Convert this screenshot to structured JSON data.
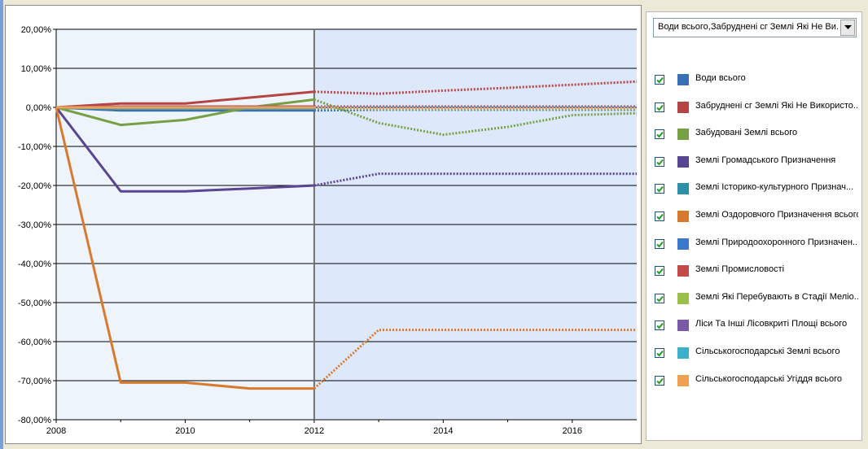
{
  "chart_data": {
    "type": "line",
    "xlim": [
      2008,
      2017
    ],
    "ylim": [
      -80,
      20
    ],
    "x_ticks": [
      2008,
      2010,
      2012,
      2014,
      2016
    ],
    "x_tick_labels": [
      "2008",
      "2010",
      "2012",
      "2014",
      "2016"
    ],
    "y_ticks": [
      20,
      10,
      0,
      -10,
      -20,
      -30,
      -40,
      -50,
      -60,
      -70,
      -80
    ],
    "y_tick_labels": [
      "20,00%",
      "10,00%",
      "0,00%",
      "-10,00%",
      "-20,00%",
      "-30,00%",
      "-40,00%",
      "-50,00%",
      "-60,00%",
      "-70,00%",
      "-80,00%"
    ],
    "forecast_start": 2012,
    "grid": true,
    "series": [
      {
        "name": "Води всього",
        "color": "#3a6eb5",
        "x": [
          2008,
          2009,
          2010,
          2011,
          2012,
          2013,
          2014,
          2015,
          2016,
          2017
        ],
        "y": [
          0,
          -0.8,
          -0.8,
          -0.8,
          -0.8,
          -0.6,
          -0.6,
          -0.6,
          -0.6,
          -0.6
        ]
      },
      {
        "name": "Забруднені сг Землі Які Не Використо...",
        "color": "#b54545",
        "x": [
          2008,
          2009,
          2010,
          2011,
          2012,
          2013,
          2014,
          2015,
          2016,
          2017
        ],
        "y": [
          0,
          1,
          1,
          2.5,
          4,
          3.5,
          4.3,
          5,
          5.8,
          6.6
        ]
      },
      {
        "name": "Забудовані Землі всього",
        "color": "#77a044",
        "x": [
          2008,
          2009,
          2010,
          2011,
          2012,
          2013,
          2014,
          2015,
          2016,
          2017
        ],
        "y": [
          0,
          -4.5,
          -3.2,
          0,
          2,
          -4,
          -7,
          -5,
          -2,
          -1.5
        ]
      },
      {
        "name": "Землі Громадського Призначення",
        "color": "#5a4590",
        "x": [
          2008,
          2009,
          2010,
          2011,
          2012,
          2013,
          2014,
          2015,
          2016,
          2017
        ],
        "y": [
          0,
          -21.5,
          -21.5,
          -20.8,
          -20,
          -17,
          -17,
          -17,
          -17,
          -17
        ]
      },
      {
        "name": "Землі Історико-культурного Признач...",
        "color": "#2e8fa8",
        "x": [
          2008,
          2009,
          2010,
          2011,
          2012,
          2013,
          2014,
          2015,
          2016,
          2017
        ],
        "y": [
          0,
          0,
          0,
          0,
          0,
          0,
          0,
          0,
          0,
          0
        ]
      },
      {
        "name": "Землі Оздоровчого Призначення всього",
        "color": "#d87a2e",
        "x": [
          2008,
          2009,
          2010,
          2011,
          2012,
          2013,
          2014,
          2015,
          2016,
          2017
        ],
        "y": [
          0,
          -70.5,
          -70.5,
          -72,
          -72,
          -57,
          -57,
          -57,
          -57,
          -57
        ]
      },
      {
        "name": "Землі Природоохоронного Призначен...",
        "color": "#3a78c9",
        "x": [
          2008,
          2009,
          2010,
          2011,
          2012,
          2013,
          2014,
          2015,
          2016,
          2017
        ],
        "y": [
          0,
          -0.3,
          -0.3,
          -0.3,
          -0.3,
          -0.3,
          -0.3,
          -0.3,
          -0.3,
          -0.3
        ]
      },
      {
        "name": "Землі Промисловості",
        "color": "#c44a4a",
        "x": [
          2008,
          2009,
          2010,
          2011,
          2012,
          2013,
          2014,
          2015,
          2016,
          2017
        ],
        "y": [
          0,
          0.2,
          0.2,
          0.2,
          0.2,
          0.2,
          0.2,
          0.2,
          0.2,
          0.2
        ]
      },
      {
        "name": "Землі Які Перебувають в Стадії Меліо...",
        "color": "#9ac04a",
        "x": [
          2008,
          2009,
          2010,
          2011,
          2012,
          2013,
          2014,
          2015,
          2016,
          2017
        ],
        "y": [
          0,
          -0.2,
          -0.2,
          -0.2,
          -0.2,
          -0.4,
          -0.4,
          -0.4,
          -0.4,
          -0.4
        ]
      },
      {
        "name": "Ліси Та Інші Лісовкриті Площі всього",
        "color": "#7a5aa8",
        "x": [
          2008,
          2009,
          2010,
          2011,
          2012,
          2013,
          2014,
          2015,
          2016,
          2017
        ],
        "y": [
          0,
          0.1,
          0.1,
          0.1,
          0.1,
          0.1,
          0.1,
          0.1,
          0.1,
          0.1
        ]
      },
      {
        "name": "Сільськогосподарські Землі всього",
        "color": "#3cb0c8",
        "x": [
          2008,
          2009,
          2010,
          2011,
          2012,
          2013,
          2014,
          2015,
          2016,
          2017
        ],
        "y": [
          0,
          -0.1,
          -0.1,
          -0.1,
          -0.1,
          -0.1,
          -0.1,
          -0.1,
          -0.1,
          -0.1
        ]
      },
      {
        "name": "Сільськогосподарські Угіддя всього",
        "color": "#f0a050",
        "x": [
          2008,
          2009,
          2010,
          2011,
          2012,
          2013,
          2014,
          2015,
          2016,
          2017
        ],
        "y": [
          0,
          0,
          0,
          0,
          0,
          -0.2,
          -0.2,
          -0.2,
          -0.2,
          -0.2
        ]
      }
    ]
  },
  "legend": {
    "selector_text": "Води всього,Забруднені сг Землі Які Не Ви...",
    "checked": [
      true,
      true,
      true,
      true,
      true,
      true,
      true,
      true,
      true,
      true,
      true,
      true
    ]
  },
  "colors": {
    "history_bg": "#eef4fc",
    "forecast_bg": "#dde9fa",
    "grid": "#000000",
    "divider": "#707070"
  }
}
